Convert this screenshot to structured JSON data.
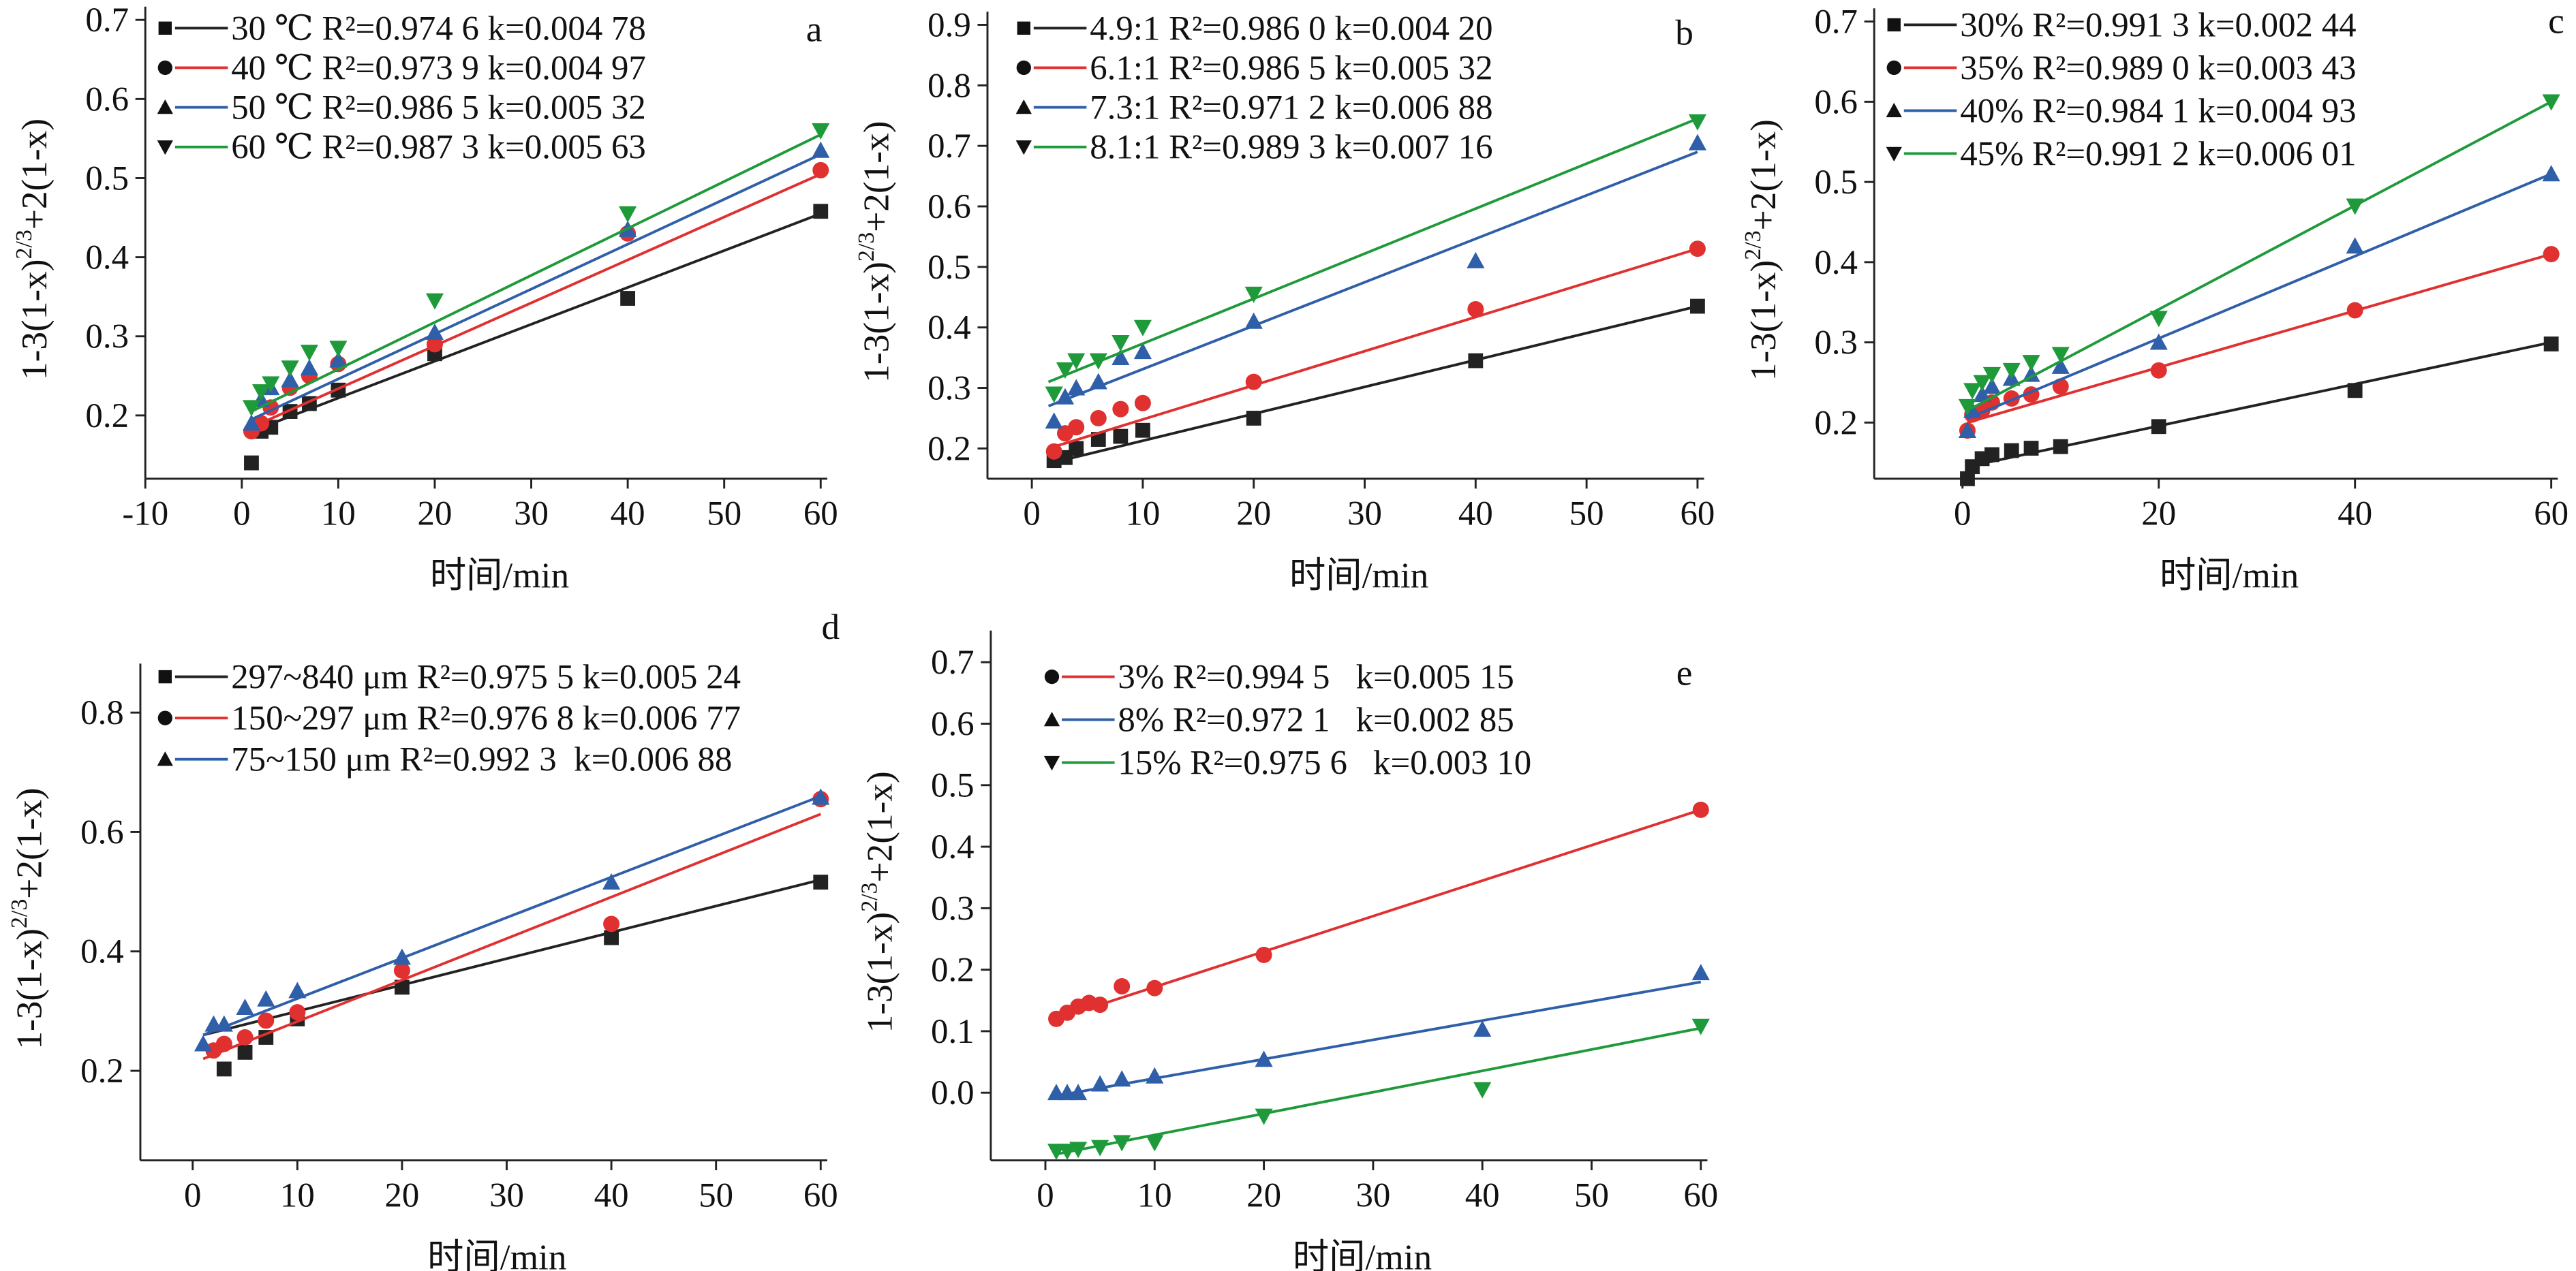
{
  "chart_data": [
    {
      "type": "scatter",
      "panel_label": "a",
      "xlabel": "时间/min",
      "ylabel": {
        "base": "1-3(1-x)",
        "sup": "2/3",
        "rest": "+2(1-x)"
      },
      "xlim": [
        -10,
        60
      ],
      "ylim": [
        0.12,
        0.7
      ],
      "xticks": [
        -10,
        0,
        10,
        20,
        30,
        40,
        50,
        60
      ],
      "yticks": [
        0.2,
        0.3,
        0.4,
        0.5,
        0.6,
        0.7
      ],
      "series": [
        {
          "name": "30 ℃ R²=0.974 6 k=0.004 78",
          "color": "#222222",
          "marker": "square",
          "x": [
            1,
            2,
            3,
            5,
            7,
            10,
            20,
            40,
            60
          ],
          "values": [
            0.14,
            0.18,
            0.185,
            0.205,
            0.215,
            0.232,
            0.278,
            0.348,
            0.458
          ],
          "fit_x": [
            1,
            60
          ],
          "fit_y": [
            0.18,
            0.455
          ]
        },
        {
          "name": "40 ℃ R²=0.973 9 k=0.004 97",
          "color": "#e03030",
          "marker": "circle",
          "x": [
            1,
            2,
            3,
            5,
            7,
            10,
            20,
            40,
            60
          ],
          "values": [
            0.18,
            0.19,
            0.21,
            0.235,
            0.25,
            0.265,
            0.29,
            0.43,
            0.51
          ],
          "fit_x": [
            1,
            60
          ],
          "fit_y": [
            0.185,
            0.505
          ]
        },
        {
          "name": "50 ℃ R²=0.986 5 k=0.005 32",
          "color": "#2f5fa8",
          "marker": "triangle-up",
          "x": [
            1,
            2,
            3,
            5,
            7,
            10,
            20,
            40,
            60
          ],
          "values": [
            0.19,
            0.22,
            0.235,
            0.245,
            0.26,
            0.27,
            0.305,
            0.435,
            0.535
          ],
          "fit_x": [
            1,
            60
          ],
          "fit_y": [
            0.195,
            0.53
          ]
        },
        {
          "name": "60 ℃ R²=0.987 3 k=0.005 63",
          "color": "#1f9a3a",
          "marker": "triangle-down",
          "x": [
            1,
            2,
            3,
            5,
            7,
            10,
            20,
            40,
            60
          ],
          "values": [
            0.21,
            0.23,
            0.24,
            0.26,
            0.28,
            0.285,
            0.345,
            0.455,
            0.56
          ],
          "fit_x": [
            1,
            60
          ],
          "fit_y": [
            0.205,
            0.555
          ]
        }
      ]
    },
    {
      "type": "scatter",
      "panel_label": "b",
      "xlabel": "时间/min",
      "ylabel": {
        "base": "1-3(1-x)",
        "sup": "2/3",
        "rest": "+2(1-x)"
      },
      "xlim": [
        -4,
        60
      ],
      "ylim": [
        0.15,
        0.9
      ],
      "xticks": [
        0,
        10,
        20,
        30,
        40,
        50,
        60
      ],
      "yticks": [
        0.2,
        0.3,
        0.4,
        0.5,
        0.6,
        0.7,
        0.8,
        0.9
      ],
      "series": [
        {
          "name": "4.9:1 R²=0.986 0 k=0.004 20",
          "color": "#222222",
          "marker": "square",
          "x": [
            2,
            3,
            4,
            6,
            8,
            10,
            20,
            40,
            60
          ],
          "values": [
            0.18,
            0.185,
            0.2,
            0.215,
            0.22,
            0.23,
            0.25,
            0.345,
            0.435
          ],
          "fit_x": [
            1.5,
            60
          ],
          "fit_y": [
            0.175,
            0.435
          ]
        },
        {
          "name": "6.1:1 R²=0.986 5 k=0.005 32",
          "color": "#e03030",
          "marker": "circle",
          "x": [
            2,
            3,
            4,
            6,
            8,
            10,
            20,
            40,
            60
          ],
          "values": [
            0.195,
            0.225,
            0.235,
            0.25,
            0.265,
            0.275,
            0.31,
            0.43,
            0.53
          ],
          "fit_x": [
            1.5,
            60
          ],
          "fit_y": [
            0.2,
            0.53
          ]
        },
        {
          "name": "7.3:1 R²=0.971 2 k=0.006 88",
          "color": "#2f5fa8",
          "marker": "triangle-up",
          "x": [
            2,
            3,
            4,
            6,
            8,
            10,
            20,
            40,
            60
          ],
          "values": [
            0.245,
            0.285,
            0.3,
            0.31,
            0.35,
            0.36,
            0.41,
            0.51,
            0.705
          ],
          "fit_x": [
            1.5,
            60
          ],
          "fit_y": [
            0.27,
            0.69
          ]
        },
        {
          "name": "8.1:1 R²=0.989 3 k=0.007 16",
          "color": "#1f9a3a",
          "marker": "triangle-down",
          "x": [
            2,
            3,
            4,
            6,
            8,
            10,
            20,
            40,
            60
          ],
          "values": [
            0.29,
            0.33,
            0.345,
            0.345,
            0.375,
            0.4,
            0.455,
            null,
            0.74
          ],
          "fit_x": [
            1.5,
            60
          ],
          "fit_y": [
            0.31,
            0.745
          ]
        }
      ]
    },
    {
      "type": "scatter",
      "panel_label": "c",
      "xlabel": "时间/min",
      "ylabel": {
        "base": "1-3(1-x)",
        "sup": "2/3",
        "rest": "+2(1-x)"
      },
      "xlim": [
        -9,
        60
      ],
      "ylim": [
        0.13,
        0.7
      ],
      "xticks": [
        0,
        20,
        40,
        60
      ],
      "yticks": [
        0.2,
        0.3,
        0.4,
        0.5,
        0.6,
        0.7
      ],
      "series": [
        {
          "name": "30% R²=0.991 3 k=0.002 44",
          "color": "#222222",
          "marker": "square",
          "x": [
            0.5,
            1,
            2,
            3,
            5,
            7,
            10,
            20,
            40,
            60
          ],
          "values": [
            0.13,
            0.145,
            0.155,
            0.16,
            0.165,
            0.168,
            0.17,
            0.195,
            0.24,
            0.298
          ],
          "fit_x": [
            0.5,
            60
          ],
          "fit_y": [
            0.145,
            0.3
          ]
        },
        {
          "name": "35% R²=0.989 0 k=0.003 43",
          "color": "#e03030",
          "marker": "circle",
          "x": [
            0.5,
            1,
            2,
            3,
            5,
            7,
            10,
            20,
            40,
            60
          ],
          "values": [
            0.19,
            0.21,
            0.215,
            0.225,
            0.23,
            0.235,
            0.245,
            0.265,
            0.34,
            0.41
          ],
          "fit_x": [
            0.5,
            60
          ],
          "fit_y": [
            0.2,
            0.41
          ]
        },
        {
          "name": "40% R²=0.984 1 k=0.004 93",
          "color": "#2f5fa8",
          "marker": "triangle-up",
          "x": [
            0.5,
            1,
            2,
            3,
            5,
            7,
            10,
            20,
            40,
            60
          ],
          "values": [
            0.19,
            0.215,
            0.235,
            0.245,
            0.255,
            0.26,
            0.27,
            0.3,
            0.42,
            0.51
          ],
          "fit_x": [
            0.5,
            60
          ],
          "fit_y": [
            0.205,
            0.51
          ]
        },
        {
          "name": "45% R²=0.991 2 k=0.006 01",
          "color": "#1f9a3a",
          "marker": "triangle-down",
          "x": [
            0.5,
            1,
            2,
            3,
            5,
            7,
            10,
            20,
            40,
            60
          ],
          "values": [
            0.22,
            0.24,
            0.25,
            0.26,
            0.265,
            0.275,
            0.285,
            0.33,
            0.47,
            0.6
          ],
          "fit_x": [
            0.5,
            60
          ],
          "fit_y": [
            0.215,
            0.6
          ]
        }
      ]
    },
    {
      "type": "scatter",
      "panel_label": "d",
      "xlabel": "时间/min",
      "ylabel": {
        "base": "1-3(1-x)",
        "sup": "2/3",
        "rest": "+2(1-x)"
      },
      "xlim": [
        -5,
        60
      ],
      "ylim": [
        0.05,
        0.86
      ],
      "xticks": [
        0,
        10,
        20,
        30,
        40,
        50,
        60
      ],
      "yticks": [
        0.2,
        0.4,
        0.6,
        0.8
      ],
      "series": [
        {
          "name": "297~840 μm R²=0.975 5 k=0.005 24",
          "color": "#222222",
          "marker": "square",
          "x": [
            3,
            5,
            7,
            10,
            20,
            40,
            60
          ],
          "values": [
            0.203,
            0.231,
            0.256,
            0.287,
            0.34,
            0.423,
            0.516
          ],
          "fit_x": [
            1,
            60
          ],
          "fit_y": [
            0.26,
            0.52
          ]
        },
        {
          "name": "150~297 μm R²=0.976 8 k=0.006 77",
          "color": "#e03030",
          "marker": "circle",
          "x": [
            2,
            3,
            5,
            7,
            10,
            20,
            40,
            60
          ],
          "values": [
            0.234,
            0.245,
            0.256,
            0.284,
            0.298,
            0.368,
            0.446,
            0.655
          ],
          "fit_x": [
            1,
            60
          ],
          "fit_y": [
            0.22,
            0.63
          ]
        },
        {
          "name": "75~150 μm R²=0.992 3  k=0.006 88",
          "color": "#2f5fa8",
          "marker": "triangle-up",
          "x": [
            1,
            2,
            3,
            5,
            7,
            10,
            20,
            40,
            60
          ],
          "values": [
            0.245,
            0.278,
            0.278,
            0.306,
            0.32,
            0.334,
            0.39,
            0.516,
            0.658
          ],
          "fit_x": [
            1,
            60
          ],
          "fit_y": [
            0.26,
            0.66
          ]
        }
      ]
    },
    {
      "type": "scatter",
      "panel_label": "e",
      "xlabel": "时间/min",
      "ylabel": {
        "base": "1-3(1-x)",
        "sup": "2/3",
        "rest": "+2(1-x)"
      },
      "xlim": [
        -5,
        60
      ],
      "ylim": [
        -0.11,
        0.73
      ],
      "xticks": [
        0,
        10,
        20,
        30,
        40,
        50,
        60
      ],
      "yticks": [
        {
          "value": 0,
          "label": "0.0"
        },
        0.1,
        0.2,
        0.3,
        0.4,
        0.5,
        0.6,
        0.7
      ],
      "series": [
        {
          "name": "3% R²=0.994 5   k=0.005 15",
          "color": "#e03030",
          "marker": "circle",
          "x": [
            1,
            2,
            3,
            4,
            5,
            7,
            10,
            20,
            60
          ],
          "values": [
            0.12,
            0.13,
            0.14,
            0.146,
            0.143,
            0.173,
            0.17,
            0.224,
            0.46
          ],
          "fit_x": [
            1,
            60
          ],
          "fit_y": [
            0.12,
            0.46
          ]
        },
        {
          "name": "8% R²=0.972 1   k=0.002 85",
          "color": "#2f5fa8",
          "marker": "triangle-up",
          "x": [
            1,
            2,
            3,
            5,
            7,
            10,
            20,
            40,
            60
          ],
          "values": [
            0,
            0,
            0,
            0.014,
            0.022,
            0.027,
            0.054,
            0.103,
            0.195
          ],
          "fit_x": [
            1,
            60
          ],
          "fit_y": [
            -0.005,
            0.18
          ]
        },
        {
          "name": "15% R²=0.975 6   k=0.003 10",
          "color": "#1f9a3a",
          "marker": "triangle-down",
          "x": [
            1,
            2,
            3,
            5,
            7,
            10,
            20,
            40,
            60
          ],
          "values": [
            -0.095,
            -0.095,
            -0.092,
            -0.089,
            -0.081,
            -0.081,
            -0.038,
            0.005,
            0.108
          ],
          "fit_x": [
            1,
            60
          ],
          "fit_y": [
            -0.1,
            0.105
          ]
        }
      ]
    }
  ]
}
